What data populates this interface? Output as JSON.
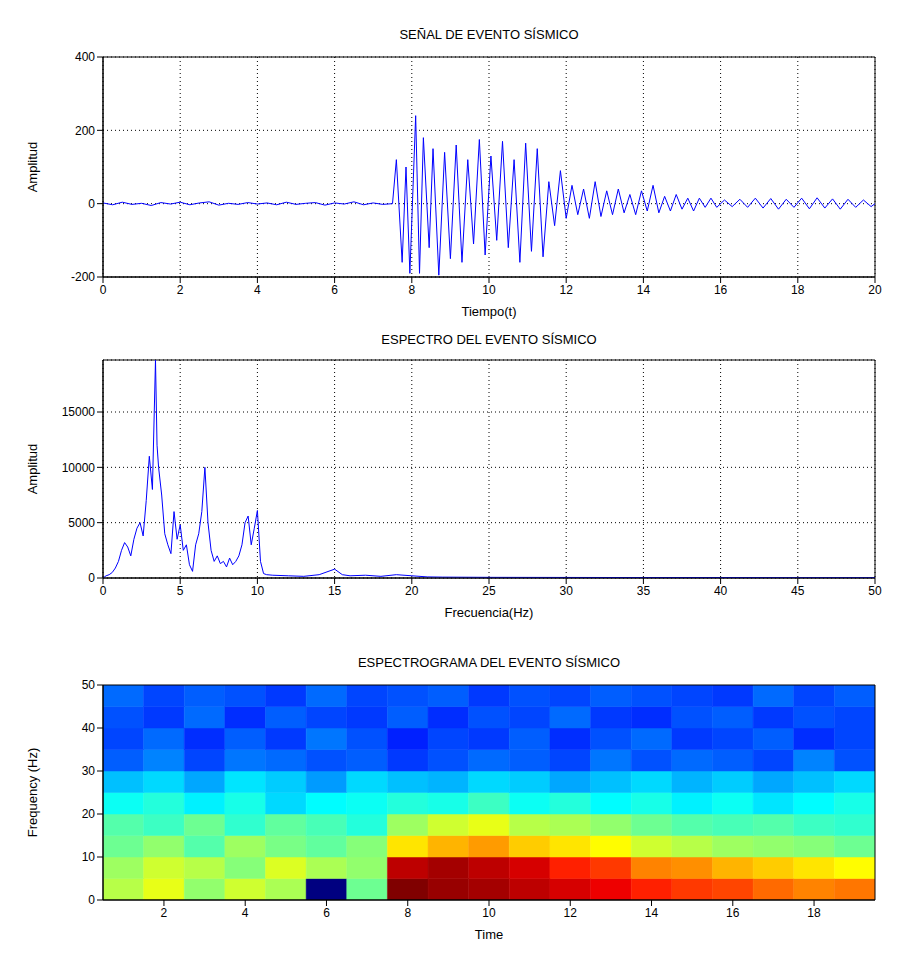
{
  "chart_data": [
    {
      "type": "line",
      "title": "SEÑAL DE EVENTO SÍSMICO",
      "xlabel": "Tiempo(t)",
      "ylabel": "Amplitud",
      "color": "#0000ff",
      "grid": true,
      "xlim": [
        0,
        20
      ],
      "ylim": [
        -200,
        400
      ],
      "xticks": [
        0,
        2,
        4,
        6,
        8,
        10,
        12,
        14,
        16,
        18,
        20
      ],
      "yticks": [
        -200,
        0,
        200,
        400
      ],
      "x": [
        0,
        0.25,
        0.5,
        0.75,
        1,
        1.25,
        1.5,
        1.75,
        2,
        2.25,
        2.5,
        2.75,
        3,
        3.25,
        3.5,
        3.75,
        4,
        4.25,
        4.5,
        4.75,
        5,
        5.25,
        5.5,
        5.75,
        6,
        6.25,
        6.5,
        6.75,
        7,
        7.25,
        7.5,
        7.6,
        7.75,
        7.85,
        7.95,
        8.1,
        8.2,
        8.3,
        8.45,
        8.55,
        8.7,
        8.85,
        9,
        9.15,
        9.3,
        9.45,
        9.6,
        9.75,
        9.9,
        10.05,
        10.2,
        10.35,
        10.5,
        10.65,
        10.8,
        10.95,
        11.1,
        11.25,
        11.4,
        11.55,
        11.7,
        11.85,
        12,
        12.15,
        12.3,
        12.45,
        12.6,
        12.75,
        12.9,
        13.05,
        13.2,
        13.35,
        13.5,
        13.65,
        13.8,
        13.95,
        14.1,
        14.25,
        14.4,
        14.55,
        14.7,
        14.85,
        15,
        15.15,
        15.3,
        15.45,
        15.6,
        15.75,
        15.9,
        16.1,
        16.3,
        16.5,
        16.7,
        16.9,
        17.1,
        17.3,
        17.5,
        17.7,
        17.9,
        18.1,
        18.3,
        18.5,
        18.7,
        18.9,
        19.1,
        19.3,
        19.5,
        19.7,
        19.9,
        20
      ],
      "values": [
        2,
        -3,
        4,
        -2,
        1,
        -5,
        3,
        -1,
        4,
        -3,
        2,
        5,
        -4,
        1,
        -2,
        3,
        -1,
        2,
        -3,
        4,
        -2,
        1,
        3,
        -4,
        2,
        -1,
        5,
        -3,
        2,
        -2,
        0,
        120,
        -160,
        100,
        -190,
        240,
        -190,
        180,
        -120,
        150,
        -195,
        140,
        -150,
        160,
        -160,
        120,
        -110,
        175,
        -140,
        130,
        -100,
        170,
        -120,
        120,
        -160,
        165,
        -130,
        150,
        -145,
        60,
        -60,
        90,
        -40,
        50,
        -30,
        40,
        -40,
        60,
        -35,
        35,
        -30,
        40,
        -25,
        25,
        -30,
        35,
        -20,
        50,
        -25,
        20,
        -20,
        25,
        -15,
        15,
        -20,
        15,
        -10,
        15,
        -10,
        10,
        -8,
        12,
        -10,
        15,
        -12,
        14,
        -15,
        12,
        -10,
        15,
        -14,
        16,
        -12,
        13,
        -15,
        12,
        -10,
        10,
        -8,
        0
      ]
    },
    {
      "type": "line",
      "title": "ESPECTRO DEL EVENTO SÍSMICO",
      "xlabel": "Frecuencia(Hz)",
      "ylabel": "Amplitud",
      "color": "#0000ff",
      "grid": true,
      "xlim": [
        0,
        50
      ],
      "ylim": [
        0,
        19700
      ],
      "xticks": [
        0,
        5,
        10,
        15,
        20,
        25,
        30,
        35,
        40,
        45,
        50
      ],
      "yticks": [
        0,
        5000,
        10000,
        15000
      ],
      "x": [
        0,
        0.2,
        0.4,
        0.6,
        0.8,
        1,
        1.2,
        1.4,
        1.6,
        1.8,
        2,
        2.2,
        2.4,
        2.6,
        2.8,
        3,
        3.2,
        3.4,
        3.5,
        3.6,
        3.8,
        4,
        4.2,
        4.4,
        4.6,
        4.8,
        5,
        5.2,
        5.4,
        5.6,
        5.8,
        6,
        6.2,
        6.4,
        6.6,
        6.8,
        7,
        7.2,
        7.4,
        7.6,
        7.8,
        8,
        8.2,
        8.4,
        8.6,
        8.8,
        9,
        9.2,
        9.4,
        9.6,
        9.8,
        10,
        10.2,
        10.4,
        10.6,
        11,
        12,
        13,
        14,
        15,
        15.5,
        16,
        17,
        18,
        19,
        20,
        21,
        22,
        25,
        30,
        35,
        40,
        45,
        50
      ],
      "values": [
        0,
        200,
        300,
        500,
        900,
        1500,
        2500,
        3200,
        2800,
        2000,
        3500,
        4500,
        5000,
        3800,
        7000,
        11000,
        8000,
        19700,
        12000,
        10000,
        7500,
        4000,
        3000,
        2200,
        6000,
        3500,
        4800,
        2500,
        3000,
        1200,
        600,
        3000,
        4000,
        6000,
        10000,
        5000,
        2500,
        1500,
        2000,
        1300,
        1500,
        1000,
        1800,
        1200,
        1500,
        2000,
        3000,
        5000,
        5600,
        3000,
        4500,
        6100,
        1500,
        400,
        300,
        250,
        200,
        150,
        300,
        800,
        300,
        200,
        250,
        150,
        300,
        200,
        100,
        80,
        60,
        50,
        40,
        40,
        30,
        30
      ]
    },
    {
      "type": "heatmap",
      "title": "ESPECTROGRAMA DEL EVENTO SÍSMICO",
      "xlabel": "Time",
      "ylabel": "Frequency (Hz)",
      "grid": false,
      "xlim": [
        0.5,
        19.5
      ],
      "ylim": [
        0,
        50
      ],
      "xticks": [
        2,
        4,
        6,
        8,
        10,
        12,
        14,
        16,
        18
      ],
      "yticks": [
        0,
        10,
        20,
        30,
        40,
        50
      ],
      "x": [
        1,
        2,
        3,
        4,
        5,
        6,
        7,
        8,
        9,
        10,
        11,
        12,
        13,
        14,
        15,
        16,
        17,
        18,
        19
      ],
      "y": [
        2.5,
        7.5,
        12.5,
        17.5,
        22.5,
        27.5,
        32.5,
        37.5,
        42.5,
        47.5
      ],
      "z": [
        [
          58,
          62,
          55,
          60,
          57,
          12,
          52,
          95,
          93,
          92,
          90,
          88,
          86,
          82,
          80,
          79,
          76,
          74,
          75
        ],
        [
          56,
          60,
          58,
          54,
          61,
          57,
          55,
          90,
          92,
          90,
          88,
          82,
          80,
          74,
          73,
          70,
          68,
          66,
          64
        ],
        [
          52,
          55,
          50,
          56,
          53,
          51,
          54,
          66,
          70,
          72,
          68,
          66,
          64,
          60,
          58,
          56,
          55,
          54,
          52
        ],
        [
          50,
          48,
          52,
          47,
          51,
          49,
          46,
          56,
          60,
          62,
          58,
          57,
          55,
          52,
          50,
          49,
          50,
          48,
          47
        ],
        [
          44,
          46,
          42,
          45,
          40,
          43,
          44,
          46,
          45,
          48,
          44,
          46,
          43,
          45,
          42,
          44,
          41,
          43,
          45
        ],
        [
          38,
          40,
          36,
          41,
          39,
          35,
          40,
          38,
          37,
          40,
          39,
          36,
          38,
          40,
          37,
          39,
          36,
          38,
          40
        ],
        [
          30,
          33,
          28,
          32,
          31,
          29,
          30,
          27,
          29,
          31,
          30,
          28,
          32,
          29,
          31,
          30,
          28,
          33,
          29
        ],
        [
          28,
          31,
          26,
          30,
          27,
          32,
          29,
          25,
          28,
          27,
          30,
          26,
          29,
          31,
          27,
          28,
          30,
          26,
          28
        ],
        [
          29,
          27,
          31,
          26,
          30,
          28,
          27,
          30,
          26,
          29,
          28,
          31,
          27,
          26,
          29,
          30,
          27,
          29,
          28
        ],
        [
          31,
          28,
          30,
          29,
          27,
          31,
          28,
          29,
          30,
          27,
          29,
          28,
          30,
          29,
          28,
          27,
          31,
          28,
          30
        ]
      ]
    }
  ]
}
